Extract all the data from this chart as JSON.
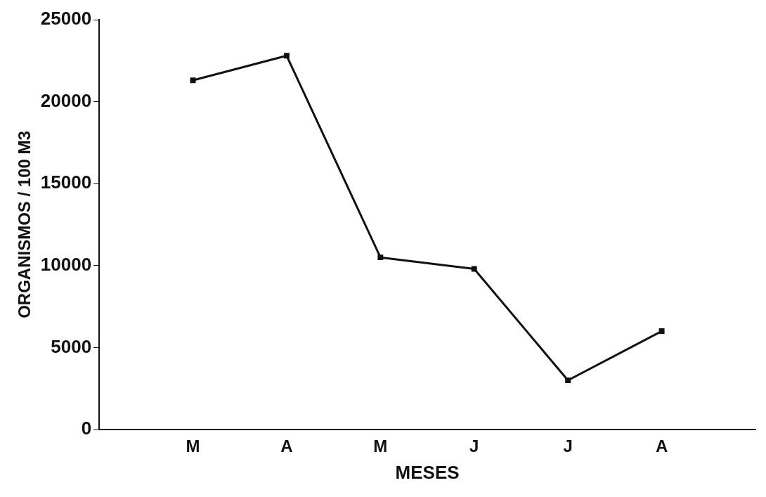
{
  "chart_data": {
    "type": "line",
    "xlabel": "MESES",
    "ylabel": "ORGANISMOS / 100 M3",
    "categories": [
      "M",
      "A",
      "M",
      "J",
      "J",
      "A"
    ],
    "series": [
      {
        "color": "#111111",
        "values": [
          21300,
          22800,
          10500,
          9800,
          3000,
          6000
        ]
      }
    ],
    "ylim": [
      0,
      25000
    ],
    "yticks": [
      0,
      5000,
      10000,
      15000,
      20000,
      25000
    ],
    "grid": false,
    "legend": false,
    "marker": "square",
    "line_style": "solid"
  }
}
